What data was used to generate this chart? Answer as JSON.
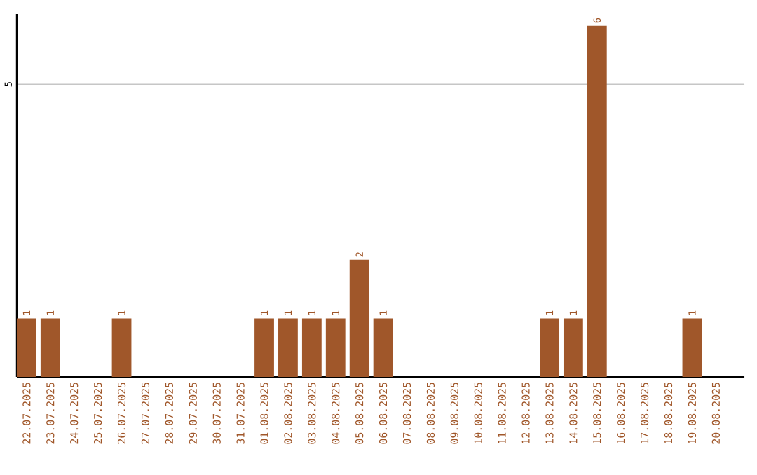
{
  "chart_data": {
    "type": "bar",
    "categories": [
      "22.07.2025",
      "23.07.2025",
      "24.07.2025",
      "25.07.2025",
      "26.07.2025",
      "27.07.2025",
      "28.07.2025",
      "29.07.2025",
      "30.07.2025",
      "31.07.2025",
      "01.08.2025",
      "02.08.2025",
      "03.08.2025",
      "04.08.2025",
      "05.08.2025",
      "06.08.2025",
      "07.08.2025",
      "08.08.2025",
      "09.08.2025",
      "10.08.2025",
      "11.08.2025",
      "12.08.2025",
      "13.08.2025",
      "14.08.2025",
      "15.08.2025",
      "16.08.2025",
      "17.08.2025",
      "18.08.2025",
      "19.08.2025",
      "20.08.2025"
    ],
    "values": [
      1,
      1,
      0,
      0,
      1,
      0,
      0,
      0,
      0,
      0,
      1,
      1,
      1,
      1,
      2,
      1,
      0,
      0,
      0,
      0,
      0,
      0,
      1,
      1,
      6,
      0,
      0,
      0,
      1,
      0
    ],
    "value_labels": [
      "1",
      "1",
      null,
      null,
      "1",
      null,
      null,
      null,
      null,
      null,
      "1",
      "1",
      "1",
      "1",
      "2",
      "1",
      null,
      null,
      null,
      null,
      null,
      null,
      "1",
      "1",
      "6",
      null,
      null,
      null,
      "1",
      null
    ],
    "color": "#a0572a",
    "ylim": [
      0,
      6.2
    ],
    "yticks": [
      5
    ],
    "grid": "y"
  }
}
